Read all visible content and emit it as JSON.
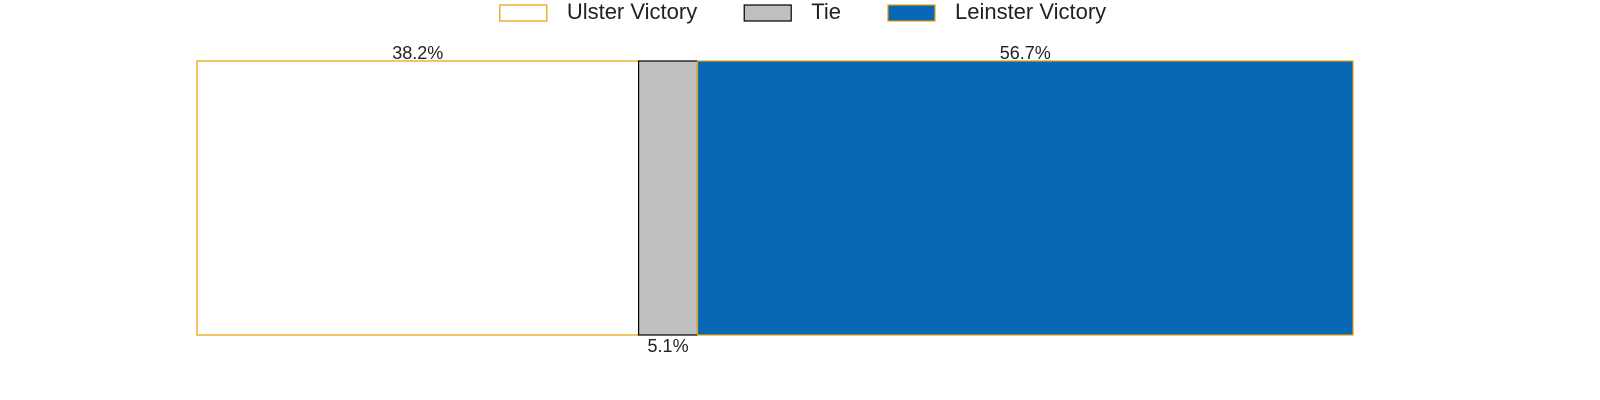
{
  "chart_data": {
    "type": "stacked-bar",
    "series": [
      {
        "name": "Ulster Victory",
        "color": "#ffffff",
        "edgecolor": "#e69f00",
        "values": [
          38.2
        ],
        "value_labels": [
          "38.2%"
        ]
      },
      {
        "name": "Tie",
        "color": "#bfbfbf",
        "edgecolor": "#000000",
        "values": [
          5.1
        ],
        "value_labels": [
          "5.1%"
        ]
      },
      {
        "name": "Leinster Victory",
        "color": "#0868b5",
        "edgecolor": "#e69f00",
        "values": [
          56.7
        ],
        "value_labels": [
          "56.7%"
        ]
      }
    ],
    "legend": "top"
  }
}
